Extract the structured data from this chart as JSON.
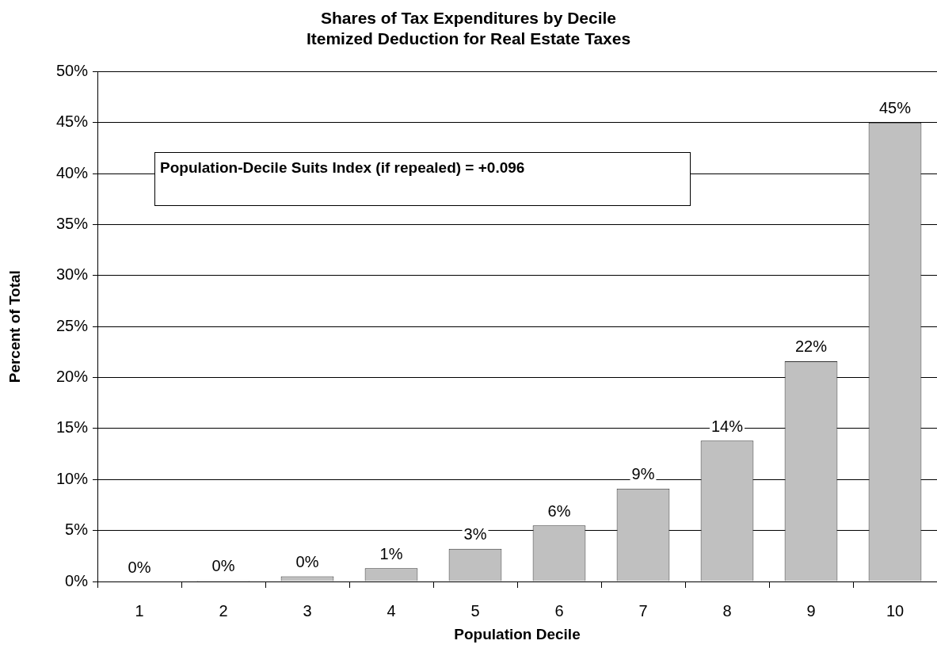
{
  "chart_data": {
    "type": "bar",
    "title": "Shares of Tax Expenditures by Decile",
    "subtitle": "Itemized Deduction for Real Estate Taxes",
    "xlabel": "Population Decile",
    "ylabel": "Percent of Total",
    "categories": [
      "1",
      "2",
      "3",
      "4",
      "5",
      "6",
      "7",
      "8",
      "9",
      "10"
    ],
    "values": [
      0,
      0.1,
      0.5,
      1.3,
      3.2,
      5.5,
      9.1,
      13.8,
      21.6,
      45.0
    ],
    "value_labels": [
      "0%",
      "0%",
      "0%",
      "1%",
      "3%",
      "6%",
      "9%",
      "14%",
      "22%",
      "45%"
    ],
    "color": "#c0c0c0",
    "ylim": [
      0,
      50
    ],
    "yticks": [
      {
        "value": 0,
        "label": "0%"
      },
      {
        "value": 5,
        "label": "5%"
      },
      {
        "value": 10,
        "label": "10%"
      },
      {
        "value": 15,
        "label": "15%"
      },
      {
        "value": 20,
        "label": "20%"
      },
      {
        "value": 25,
        "label": "25%"
      },
      {
        "value": 30,
        "label": "30%"
      },
      {
        "value": 35,
        "label": "35%"
      },
      {
        "value": 40,
        "label": "40%"
      },
      {
        "value": 45,
        "label": "45%"
      },
      {
        "value": 50,
        "label": "50%"
      }
    ],
    "grid": "y",
    "annotations": [
      "Population-Decile Suits Index (if repealed) = +0.096"
    ]
  }
}
